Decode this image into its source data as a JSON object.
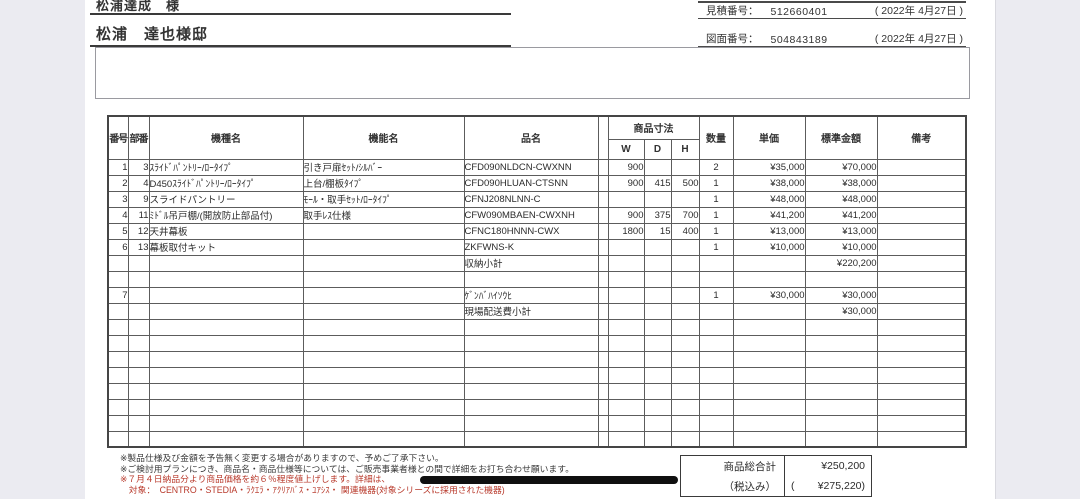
{
  "header": {
    "customer_name": "松浦達成　様",
    "project_name": "松浦　達也様邸"
  },
  "doc_numbers": {
    "estimate_label": "見積番号：",
    "estimate_number": "512660401",
    "estimate_date": "( 2022年 4月27日 )",
    "drawing_label": "図面番号：",
    "drawing_number": "504843189",
    "drawing_date": "( 2022年 4月27日 )"
  },
  "table": {
    "headers": {
      "no": "番号",
      "part": "部番",
      "model": "機種名",
      "func": "機能名",
      "name": "品名",
      "dims": "商品寸法",
      "w": "W",
      "d": "D",
      "h": "H",
      "qty": "数量",
      "unit": "単価",
      "amount": "標準金額",
      "note": "備考"
    },
    "rows": [
      {
        "no": "1",
        "part": "3",
        "model": "ｽﾗｲﾄﾞﾊﾟﾝﾄﾘｰ/ﾛｰﾀｲﾌﾟ",
        "func": "引き戸扉ｾｯﾄ/ｼﾙﾊﾞｰ",
        "name": "CFD090NLDCN-CWXNN",
        "w": "900",
        "d": "",
        "h": "",
        "qty": "2",
        "unit": "¥35,000",
        "amount": "¥70,000",
        "note": ""
      },
      {
        "no": "2",
        "part": "4",
        "model": "D450ｽﾗｲﾄﾞﾊﾟﾝﾄﾘｰ/ﾛｰﾀｲﾌﾟ",
        "func": "上台/棚板ﾀｲﾌﾟ",
        "name": "CFD090HLUAN-CTSNN",
        "w": "900",
        "d": "415",
        "h": "500",
        "qty": "1",
        "unit": "¥38,000",
        "amount": "¥38,000",
        "note": ""
      },
      {
        "no": "3",
        "part": "9",
        "model": "スライドパントリー",
        "func": "ﾓｰﾙ・取手ｾｯﾄ/ﾛｰﾀｲﾌﾟ",
        "name": "CFNJ208NLNN-C",
        "w": "",
        "d": "",
        "h": "",
        "qty": "1",
        "unit": "¥48,000",
        "amount": "¥48,000",
        "note": ""
      },
      {
        "no": "4",
        "part": "11",
        "model": "ﾐﾄﾞﾙ吊戸棚/(開放防止部品付)",
        "func": "取手ﾚｽ仕様",
        "name": "CFW090MBAEN-CWXNH",
        "w": "900",
        "d": "375",
        "h": "700",
        "qty": "1",
        "unit": "¥41,200",
        "amount": "¥41,200",
        "note": ""
      },
      {
        "no": "5",
        "part": "12",
        "model": "天井幕板",
        "func": "",
        "name": "CFNC180HNNN-CWX",
        "w": "1800",
        "d": "15",
        "h": "400",
        "qty": "1",
        "unit": "¥13,000",
        "amount": "¥13,000",
        "note": ""
      },
      {
        "no": "6",
        "part": "13",
        "model": "幕板取付キット",
        "func": "",
        "name": "ZKFWNS-K",
        "w": "",
        "d": "",
        "h": "",
        "qty": "1",
        "unit": "¥10,000",
        "amount": "¥10,000",
        "note": ""
      },
      {
        "no": "",
        "part": "",
        "model": "",
        "func": "",
        "name": "収納小計",
        "w": "",
        "d": "",
        "h": "",
        "qty": "",
        "unit": "",
        "amount": "¥220,200",
        "note": ""
      },
      {
        "no": "",
        "part": "",
        "model": "",
        "func": "",
        "name": "",
        "w": "",
        "d": "",
        "h": "",
        "qty": "",
        "unit": "",
        "amount": "",
        "note": ""
      },
      {
        "no": "7",
        "part": "",
        "model": "",
        "func": "",
        "name": "ｹﾞﾝﾊﾞﾊｲｿｳﾋ",
        "w": "",
        "d": "",
        "h": "",
        "qty": "1",
        "unit": "¥30,000",
        "amount": "¥30,000",
        "note": ""
      },
      {
        "no": "",
        "part": "",
        "model": "",
        "func": "",
        "name": "現場配送費小計",
        "w": "",
        "d": "",
        "h": "",
        "qty": "",
        "unit": "",
        "amount": "¥30,000",
        "note": ""
      },
      {
        "no": "",
        "part": "",
        "model": "",
        "func": "",
        "name": "",
        "w": "",
        "d": "",
        "h": "",
        "qty": "",
        "unit": "",
        "amount": "",
        "note": ""
      },
      {
        "no": "",
        "part": "",
        "model": "",
        "func": "",
        "name": "",
        "w": "",
        "d": "",
        "h": "",
        "qty": "",
        "unit": "",
        "amount": "",
        "note": ""
      },
      {
        "no": "",
        "part": "",
        "model": "",
        "func": "",
        "name": "",
        "w": "",
        "d": "",
        "h": "",
        "qty": "",
        "unit": "",
        "amount": "",
        "note": ""
      },
      {
        "no": "",
        "part": "",
        "model": "",
        "func": "",
        "name": "",
        "w": "",
        "d": "",
        "h": "",
        "qty": "",
        "unit": "",
        "amount": "",
        "note": ""
      },
      {
        "no": "",
        "part": "",
        "model": "",
        "func": "",
        "name": "",
        "w": "",
        "d": "",
        "h": "",
        "qty": "",
        "unit": "",
        "amount": "",
        "note": ""
      },
      {
        "no": "",
        "part": "",
        "model": "",
        "func": "",
        "name": "",
        "w": "",
        "d": "",
        "h": "",
        "qty": "",
        "unit": "",
        "amount": "",
        "note": ""
      },
      {
        "no": "",
        "part": "",
        "model": "",
        "func": "",
        "name": "",
        "w": "",
        "d": "",
        "h": "",
        "qty": "",
        "unit": "",
        "amount": "",
        "note": ""
      },
      {
        "no": "",
        "part": "",
        "model": "",
        "func": "",
        "name": "",
        "w": "",
        "d": "",
        "h": "",
        "qty": "",
        "unit": "",
        "amount": "",
        "note": ""
      }
    ]
  },
  "footer": {
    "notes": [
      "※製品仕様及び金額を予告無く変更する場合がありますので、予めご了承下さい。",
      "※ご検討用プランにつき、商品名・商品仕様等については、ご販売事業者様との間で詳細をお打ち合わせ願います。",
      "※７月４日納品分より商品価格を約６％程度値上げします。詳細は、",
      "　対象：　CENTRO・STEDIA・ﾗｸｴﾗ・ｱｸﾘｱﾊﾞｽ・ﾕｱｼｽ・ 関連機器(対象シリーズに採用された機器)"
    ],
    "totals": {
      "total_label": "商品総合計",
      "total_value": "¥250,200",
      "tax_label": "（税込み）",
      "tax_open": "(",
      "tax_value": "¥275,220)"
    }
  },
  "colors": {
    "note_red": "#b8392b",
    "page_background": "#ffffff",
    "canvas_background": "#ebebf1"
  }
}
